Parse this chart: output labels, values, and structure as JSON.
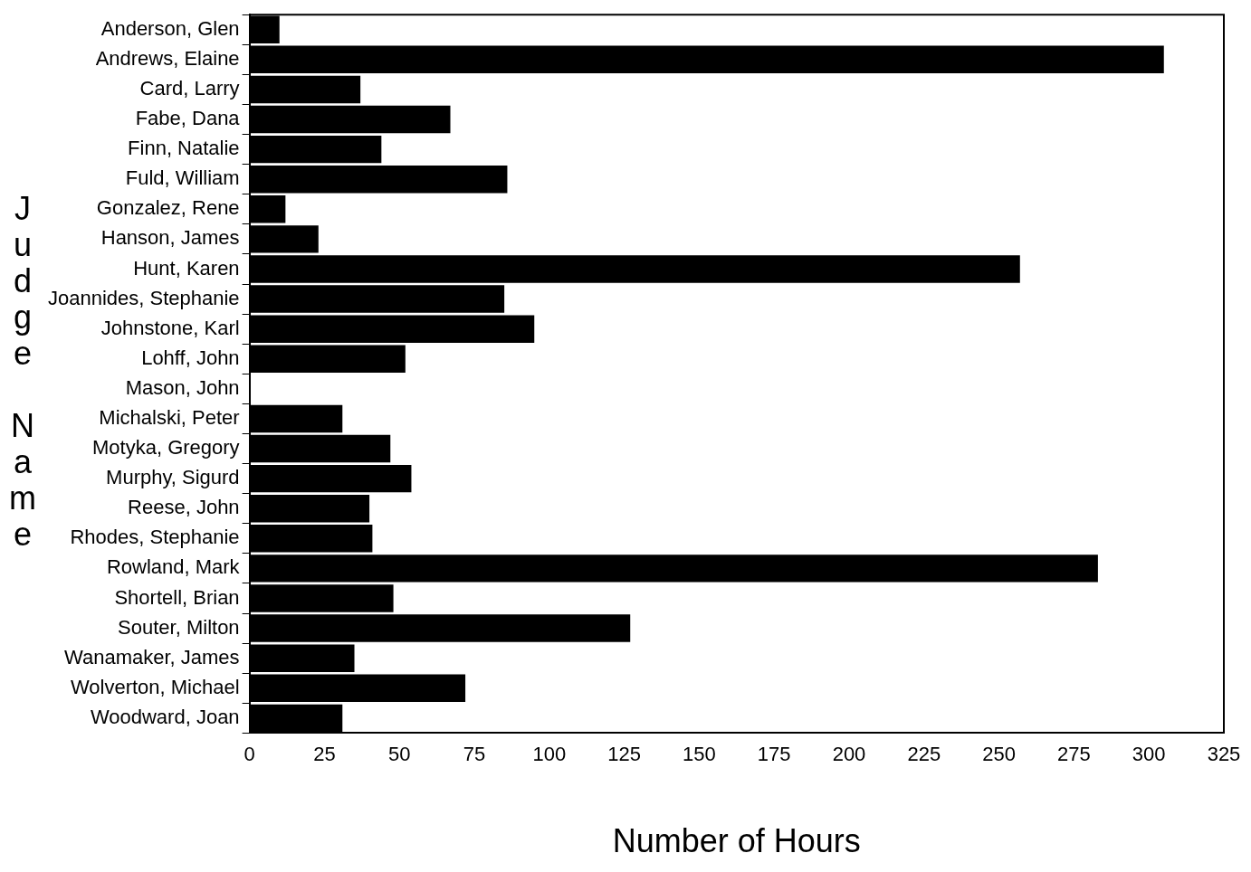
{
  "chart_data": {
    "type": "bar",
    "orientation": "horizontal",
    "xlabel": "Number of Hours",
    "ylabel": "Judge Name",
    "categories": [
      "Anderson, Glen",
      "Andrews, Elaine",
      "Card, Larry",
      "Fabe, Dana",
      "Finn, Natalie",
      "Fuld, William",
      "Gonzalez, Rene",
      "Hanson, James",
      "Hunt, Karen",
      "Joannides, Stephanie",
      "Johnstone, Karl",
      "Lohff, John",
      "Mason, John",
      "Michalski, Peter",
      "Motyka, Gregory",
      "Murphy, Sigurd",
      "Reese, John",
      "Rhodes, Stephanie",
      "Rowland, Mark",
      "Shortell, Brian",
      "Souter, Milton",
      "Wanamaker, James",
      "Wolverton, Michael",
      "Woodward, Joan"
    ],
    "values": [
      10,
      305,
      37,
      67,
      44,
      86,
      12,
      23,
      257,
      85,
      95,
      52,
      0,
      31,
      47,
      54,
      40,
      41,
      283,
      48,
      127,
      35,
      72,
      31
    ],
    "color": "#000000",
    "xlim": [
      0,
      325
    ],
    "xticks": [
      0,
      25,
      50,
      75,
      100,
      125,
      150,
      175,
      200,
      225,
      250,
      275,
      300,
      325
    ],
    "grid": false,
    "legend": false
  }
}
